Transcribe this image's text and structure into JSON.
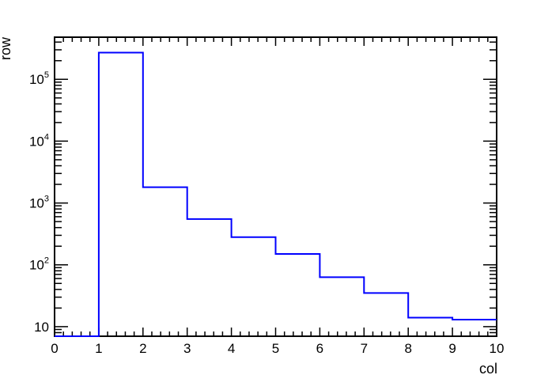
{
  "chart_data": {
    "type": "histogram",
    "xlabel": "col",
    "ylabel": "row",
    "xlim": [
      0,
      10
    ],
    "ylim": [
      7,
      480000
    ],
    "yscale": "log",
    "x_ticks": [
      0,
      1,
      2,
      3,
      4,
      5,
      6,
      7,
      8,
      9,
      10
    ],
    "y_ticks": [
      {
        "value": 10,
        "base": "10",
        "exp": ""
      },
      {
        "value": 100,
        "base": "10",
        "exp": "2"
      },
      {
        "value": 1000,
        "base": "10",
        "exp": "3"
      },
      {
        "value": 10000,
        "base": "10",
        "exp": "4"
      },
      {
        "value": 100000,
        "base": "10",
        "exp": "5"
      }
    ],
    "bin_edges": [
      0,
      1,
      2,
      3,
      4,
      5,
      6,
      7,
      8,
      9,
      10
    ],
    "values": [
      7,
      270000,
      1800,
      550,
      280,
      150,
      63,
      35,
      14,
      13
    ],
    "line_color": "#0000ff",
    "grid": false
  }
}
